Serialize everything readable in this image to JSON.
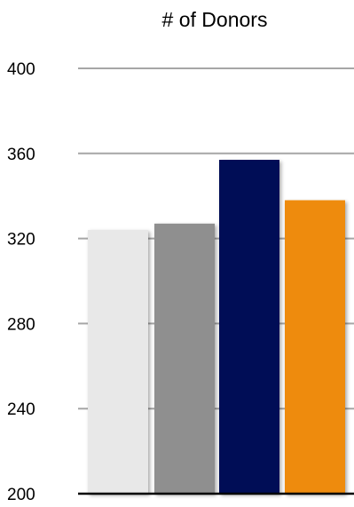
{
  "chart_data": {
    "type": "bar",
    "title": "# of Donors",
    "xlabel": "",
    "ylabel": "",
    "categories": [
      "",
      "",
      "",
      ""
    ],
    "values": [
      324,
      327,
      357,
      338
    ],
    "colors": [
      "#e8e8e8",
      "#8f8f8f",
      "#000d57",
      "#ee8b07"
    ],
    "ylim": [
      200,
      400
    ],
    "yticks": [
      200,
      240,
      280,
      320,
      360,
      400
    ],
    "grid": true,
    "legend": "none"
  }
}
